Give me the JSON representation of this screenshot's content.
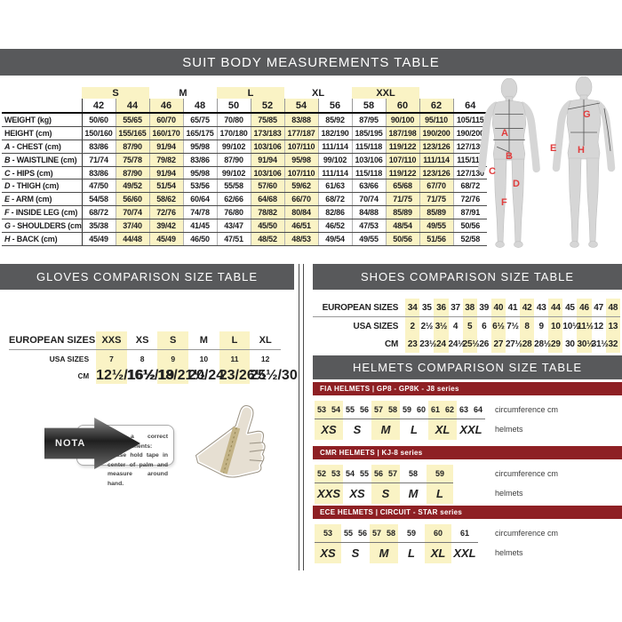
{
  "banners": {
    "suit": "SUIT BODY MEASUREMENTS TABLE",
    "gloves": "GLOVES COMPARISON SIZE TABLE",
    "shoes": "SHOES COMPARISON SIZE TABLE",
    "helmets": "HELMETS COMPARISON SIZE TABLE"
  },
  "colors": {
    "banner_gray": "#58595B",
    "maroon": "#8E2024",
    "highlight_yellow": "#FAF3C5",
    "figure_label_red": "#E03C3C"
  },
  "suit_table": {
    "size_groups": [
      {
        "label": "",
        "span": 1,
        "highlight": false
      },
      {
        "label": "S",
        "span": 2,
        "highlight": true
      },
      {
        "label": "M",
        "span": 2,
        "highlight": false
      },
      {
        "label": "L",
        "span": 2,
        "highlight": true
      },
      {
        "label": "XL",
        "span": 2,
        "highlight": false
      },
      {
        "label": "XXL",
        "span": 2,
        "highlight": true
      },
      {
        "label": "",
        "span": 1,
        "highlight": false
      }
    ],
    "sizes": [
      "42",
      "44",
      "46",
      "48",
      "50",
      "52",
      "54",
      "56",
      "58",
      "60",
      "62",
      "64"
    ],
    "highlighted_size_indices": [
      1,
      2,
      5,
      6,
      9,
      10
    ],
    "rows": [
      {
        "letter": "",
        "label": "WEIGHT (kg)",
        "values": [
          "50/60",
          "55/65",
          "60/70",
          "65/75",
          "70/80",
          "75/85",
          "83/88",
          "85/92",
          "87/95",
          "90/100",
          "95/110",
          "105/115"
        ]
      },
      {
        "letter": "",
        "label": "HEIGHT (cm)",
        "values": [
          "150/160",
          "155/165",
          "160/170",
          "165/175",
          "170/180",
          "173/183",
          "177/187",
          "182/190",
          "185/195",
          "187/198",
          "190/200",
          "190/200"
        ]
      },
      {
        "letter": "A",
        "label": "CHEST (cm)",
        "values": [
          "83/86",
          "87/90",
          "91/94",
          "95/98",
          "99/102",
          "103/106",
          "107/110",
          "111/114",
          "115/118",
          "119/122",
          "123/126",
          "127/130"
        ]
      },
      {
        "letter": "B",
        "label": "WAISTLINE (cm)",
        "values": [
          "71/74",
          "75/78",
          "79/82",
          "83/86",
          "87/90",
          "91/94",
          "95/98",
          "99/102",
          "103/106",
          "107/110",
          "111/114",
          "115/119"
        ]
      },
      {
        "letter": "C",
        "label": "HIPS (cm)",
        "values": [
          "83/86",
          "87/90",
          "91/94",
          "95/98",
          "99/102",
          "103/106",
          "107/110",
          "111/114",
          "115/118",
          "119/122",
          "123/126",
          "127/130"
        ]
      },
      {
        "letter": "D",
        "label": "THIGH (cm)",
        "values": [
          "47/50",
          "49/52",
          "51/54",
          "53/56",
          "55/58",
          "57/60",
          "59/62",
          "61/63",
          "63/66",
          "65/68",
          "67/70",
          "68/72"
        ]
      },
      {
        "letter": "E",
        "label": "ARM (cm)",
        "values": [
          "54/58",
          "56/60",
          "58/62",
          "60/64",
          "62/66",
          "64/68",
          "66/70",
          "68/72",
          "70/74",
          "71/75",
          "71/75",
          "72/76"
        ]
      },
      {
        "letter": "F",
        "label": "INSIDE LEG (cm)",
        "values": [
          "68/72",
          "70/74",
          "72/76",
          "74/78",
          "76/80",
          "78/82",
          "80/84",
          "82/86",
          "84/88",
          "85/89",
          "85/89",
          "87/91"
        ]
      },
      {
        "letter": "G",
        "label": "SHOULDERS (cm)",
        "values": [
          "35/38",
          "37/40",
          "39/42",
          "41/45",
          "43/47",
          "45/50",
          "46/51",
          "46/52",
          "47/53",
          "48/54",
          "49/55",
          "50/56"
        ]
      },
      {
        "letter": "H",
        "label": "BACK (cm)",
        "values": [
          "45/49",
          "44/48",
          "45/49",
          "46/50",
          "47/51",
          "48/52",
          "48/53",
          "49/54",
          "49/55",
          "50/56",
          "51/56",
          "52/58"
        ]
      }
    ]
  },
  "figure": {
    "labels": {
      "A": "A",
      "B": "B",
      "C": "C",
      "D": "D",
      "E": "E",
      "F": "F",
      "G": "G",
      "H": "H"
    }
  },
  "gloves_table": {
    "row_labels": [
      "EUROPEAN SIZES",
      "USA SIZES",
      "CM"
    ],
    "european": [
      "XXS",
      "XS",
      "S",
      "M",
      "L",
      "XL"
    ],
    "usa": [
      "7",
      "8",
      "9",
      "10",
      "11",
      "12"
    ],
    "cm": [
      "12½/16½",
      "16½/19",
      "18/21½",
      "20/24",
      "23/26½",
      "25½/30"
    ],
    "highlighted_indices": [
      0,
      2,
      4
    ]
  },
  "shoes_table": {
    "row_labels": [
      "EUROPEAN SIZES",
      "USA SIZES",
      "CM"
    ],
    "european": [
      "34",
      "35",
      "36",
      "37",
      "38",
      "39",
      "40",
      "41",
      "42",
      "43",
      "44",
      "45",
      "46",
      "47",
      "48"
    ],
    "usa": [
      "2",
      "2½",
      "3½",
      "4",
      "5",
      "6",
      "6½",
      "7½",
      "8",
      "9",
      "10",
      "10½",
      "11½",
      "12",
      "13"
    ],
    "cm": [
      "23",
      "23½",
      "24",
      "24½",
      "25½",
      "26",
      "27",
      "27½",
      "28",
      "28½",
      "29",
      "30",
      "30½",
      "31½",
      "32"
    ],
    "highlighted_indices": [
      0,
      2,
      4,
      6,
      8,
      10,
      12,
      14
    ]
  },
  "helmet_sections": [
    {
      "header": "FIA HELMETS | GP8 - GP8K - J8 series",
      "circumferences": [
        "53",
        "54",
        "55",
        "56",
        "57",
        "58",
        "59",
        "60",
        "61",
        "62",
        "63",
        "64"
      ],
      "groups": [
        {
          "size": "XS",
          "count": 2
        },
        {
          "size": "S",
          "count": 2
        },
        {
          "size": "M",
          "count": 2
        },
        {
          "size": "L",
          "count": 2
        },
        {
          "size": "XL",
          "count": 2
        },
        {
          "size": "XXL",
          "count": 2
        }
      ],
      "highlighted_groups": [
        0,
        2,
        4
      ],
      "col_label": "circumference cm",
      "row_label": "helmets"
    },
    {
      "header": "CMR HELMETS | KJ-8 series",
      "circumferences": [
        "52",
        "53",
        "54",
        "55",
        "56",
        "57",
        "58",
        "59"
      ],
      "groups": [
        {
          "size": "XXS",
          "count": 2
        },
        {
          "size": "XS",
          "count": 2
        },
        {
          "size": "S",
          "count": 2
        },
        {
          "size": "M",
          "count": 1
        },
        {
          "size": "L",
          "count": 1
        }
      ],
      "highlighted_groups": [
        0,
        2,
        4
      ],
      "col_label": "circumference cm",
      "row_label": "helmets"
    },
    {
      "header": "ECE HELMETS | CIRCUIT - STAR series",
      "circumferences": [
        "53",
        "55",
        "56",
        "57",
        "58",
        "59",
        "60",
        "61"
      ],
      "groups": [
        {
          "size": "XS",
          "count": 1
        },
        {
          "size": "S",
          "count": 2
        },
        {
          "size": "M",
          "count": 2
        },
        {
          "size": "L",
          "count": 1
        },
        {
          "size": "XL",
          "count": 1
        },
        {
          "size": "XXL",
          "count": 1
        }
      ],
      "highlighted_groups": [
        0,
        2,
        4
      ],
      "col_label": "circumference cm",
      "row_label": "helmets"
    }
  ],
  "note": {
    "tag": "NOTA",
    "text": "For a correct measurements: please hold tape in center of palm and measure around hand."
  }
}
